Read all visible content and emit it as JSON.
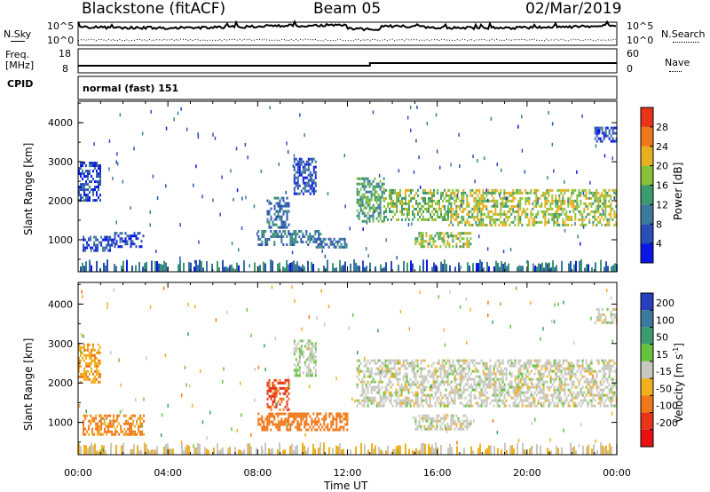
{
  "header": {
    "station": "Blackstone (fitACF)",
    "beam": "Beam 05",
    "date": "02/Mar/2019"
  },
  "top_panels": {
    "nsky_label": "N.Sky",
    "nsearch_label": "N.Search",
    "noise_ticks": [
      "10^5",
      "10^0"
    ],
    "freq_label_line1": "Freq.",
    "freq_label_line2": "[MHz]",
    "freq_ticks": [
      "18",
      "8"
    ],
    "nave_label": "Nave",
    "nave_ticks": [
      "60",
      "0"
    ],
    "cpid_label": "CPID",
    "cpid_value": "normal (fast) 151"
  },
  "chart_data": [
    {
      "type": "heatmap",
      "name": "power",
      "ylabel": "Slant Range [km]",
      "yticks": [
        1000,
        2000,
        3000,
        4000
      ],
      "ylim": [
        180,
        4550
      ],
      "colorbar_label": "Power [dB]",
      "colorbar_ticks": [
        4,
        8,
        12,
        16,
        20,
        24,
        28
      ],
      "colorbar_range": [
        0,
        32
      ],
      "colors": [
        "#0a16e6",
        "#2a4fb4",
        "#3b7a9c",
        "#3d9a6e",
        "#88c23c",
        "#e8b020",
        "#f07818",
        "#e83418"
      ],
      "echo_regions": [
        {
          "t": [
            0.2,
            1.6
          ],
          "r": [
            700,
            1100
          ],
          "v": 6
        },
        {
          "t": [
            1.6,
            2.9
          ],
          "r": [
            800,
            1200
          ],
          "v": 5
        },
        {
          "t": [
            8.0,
            10.8
          ],
          "r": [
            850,
            1250
          ],
          "v": 10
        },
        {
          "t": [
            10.5,
            12.0
          ],
          "r": [
            800,
            1050
          ],
          "v": 9
        },
        {
          "t": [
            8.4,
            9.4
          ],
          "r": [
            1300,
            2100
          ],
          "v": 9
        },
        {
          "t": [
            9.6,
            10.6
          ],
          "r": [
            2200,
            3100
          ],
          "v": 6
        },
        {
          "t": [
            12.4,
            13.6
          ],
          "r": [
            1500,
            2600
          ],
          "v": 14
        },
        {
          "t": [
            13.6,
            16.5
          ],
          "r": [
            1500,
            2300
          ],
          "v": 17
        },
        {
          "t": [
            15.0,
            17.5
          ],
          "r": [
            800,
            1200
          ],
          "v": 18
        },
        {
          "t": [
            16.5,
            24.0
          ],
          "r": [
            1400,
            2300
          ],
          "v": 19
        },
        {
          "t": [
            0.0,
            1.0
          ],
          "r": [
            2000,
            3000
          ],
          "v": 5
        },
        {
          "t": [
            23.0,
            24.0
          ],
          "r": [
            3500,
            3900
          ],
          "v": 6
        }
      ]
    },
    {
      "type": "heatmap",
      "name": "velocity",
      "xlabel": "Time UT",
      "xticks": [
        "00:00",
        "04:00",
        "08:00",
        "12:00",
        "16:00",
        "20:00",
        "00:00"
      ],
      "xlim_hours": [
        0,
        24
      ],
      "ylabel": "Slant Range [km]",
      "yticks": [
        1000,
        2000,
        3000,
        4000
      ],
      "ylim": [
        180,
        4550
      ],
      "colorbar_label": "Velocity [m s^-1]",
      "colorbar_ticks": [
        "200",
        "100",
        "50",
        "15",
        "-15",
        "-50",
        "-100",
        "-200"
      ],
      "colors": [
        "#2a3fc0",
        "#3b7a9c",
        "#3d9a6e",
        "#66c23c",
        "#c8c8c0",
        "#f0b020",
        "#f07818",
        "#e83418",
        "#e81010"
      ],
      "echo_regions": [
        {
          "t": [
            0.2,
            2.9
          ],
          "r": [
            700,
            1200
          ],
          "v": -60
        },
        {
          "t": [
            8.0,
            12.0
          ],
          "r": [
            800,
            1250
          ],
          "v": -70
        },
        {
          "t": [
            8.4,
            9.4
          ],
          "r": [
            1300,
            2100
          ],
          "v": -110
        },
        {
          "t": [
            9.6,
            10.6
          ],
          "r": [
            2200,
            3100
          ],
          "v": 10
        },
        {
          "t": [
            12.4,
            24.0
          ],
          "r": [
            1400,
            2600
          ],
          "v": 0
        },
        {
          "t": [
            15.0,
            17.5
          ],
          "r": [
            800,
            1200
          ],
          "v": 0
        },
        {
          "t": [
            0.0,
            1.0
          ],
          "r": [
            2000,
            3000
          ],
          "v": -40
        },
        {
          "t": [
            23.0,
            24.0
          ],
          "r": [
            3500,
            3900
          ],
          "v": 0
        }
      ]
    }
  ],
  "colorbar_top_label": "Power [dB]",
  "colorbar_bottom_label": "Velocity [m s",
  "colorbar_bottom_unit_sup": "-1",
  "colorbar_bottom_close": "]"
}
